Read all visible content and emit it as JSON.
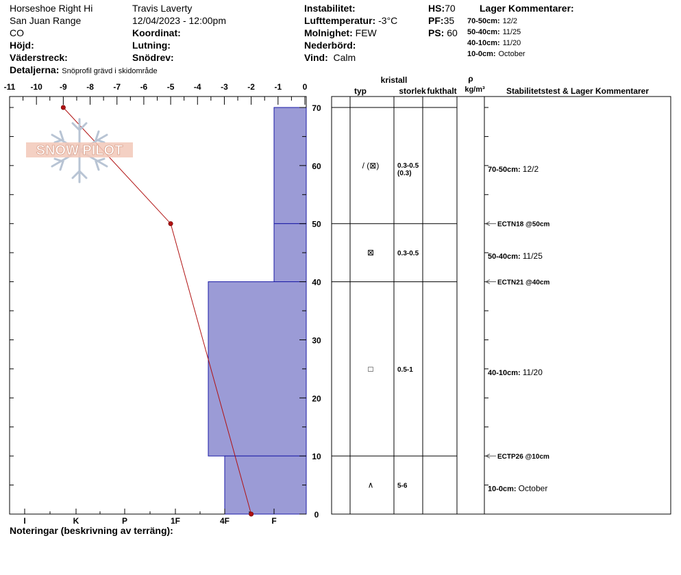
{
  "header": {
    "location": "Horseshoe Right Hi",
    "range": "San Juan Range",
    "state": "CO",
    "hojd_label": "Höjd:",
    "vaderstreck_label": "Väderstreck:",
    "detaljer_label": "Detaljerna:",
    "detaljer_value": "Snöprofil grävd i skidområde",
    "observer": "Travis Laverty",
    "datetime": "12/04/2023 - 12:00pm",
    "koordinat_label": "Koordinat:",
    "lutning_label": "Lutning:",
    "snodrev_label": "Snödrev:",
    "instabilitet_label": "Instabilitet:",
    "lufttemp_label": "Lufttemperatur:",
    "lufttemp_value": "-3°C",
    "molnighet_label": "Molnighet:",
    "molnighet_value": "FEW",
    "nederbord_label": "Nederbörd:",
    "vind_label": "Vind:",
    "vind_value": "Calm",
    "hs_label": "HS:",
    "hs_value": "70",
    "pf_label": "PF:",
    "pf_value": "35",
    "ps_label": "PS:",
    "ps_value": "60",
    "lager_title": "Lager Kommentarer:",
    "lager": [
      {
        "range": "70-50cm:",
        "date": "12/2"
      },
      {
        "range": "50-40cm:",
        "date": "11/25"
      },
      {
        "range": "40-10cm:",
        "date": "11/20"
      },
      {
        "range": "10-0cm:",
        "date": "October"
      }
    ]
  },
  "watermark": "SNOW PILOT",
  "footer": {
    "notes_label": "Noteringar (beskrivning av terräng):"
  },
  "table_headers": {
    "kristall": "kristall",
    "typ": "typ",
    "storlek": "storlek",
    "fukthalt": "fukthalt",
    "rho": "ρ",
    "density_unit": "kg/m³",
    "stability": "Stabilitetstest & Lager Kommentarer"
  },
  "chart_data": {
    "type": "snow-profile",
    "temp_axis": {
      "ticks": [
        "-11",
        "-10",
        "-9",
        "-8",
        "-7",
        "-6",
        "-5",
        "-4",
        "-3",
        "-2",
        "-1",
        "0"
      ],
      "range": [
        -11,
        0
      ]
    },
    "height_axis": {
      "ticks": [
        "0",
        "10",
        "20",
        "30",
        "40",
        "50",
        "60",
        "70"
      ],
      "range": [
        0,
        70
      ]
    },
    "hardness_axis": {
      "labels": [
        "I",
        "K",
        "P",
        "1F",
        "4F",
        "F"
      ]
    },
    "temperature_profile": [
      {
        "height": 70,
        "temp": -9
      },
      {
        "height": 50,
        "temp": -5
      },
      {
        "height": 0,
        "temp": -2
      }
    ],
    "hardness_layers": [
      {
        "top": 70,
        "bottom": 50,
        "hardness": "F"
      },
      {
        "top": 50,
        "bottom": 40,
        "hardness": "F"
      },
      {
        "top": 40,
        "bottom": 10,
        "hardness": "1F-"
      },
      {
        "top": 10,
        "bottom": 0,
        "hardness": "4F"
      }
    ],
    "layers": [
      {
        "top": 70,
        "bottom": 50,
        "crystal": "/ (⊠)",
        "size": "0.3-0.5",
        "size2": "(0.3)",
        "comment_range": "70-50cm:",
        "comment": "12/2"
      },
      {
        "top": 50,
        "bottom": 40,
        "crystal": "⊠",
        "size": "0.3-0.5",
        "size2": "",
        "comment_range": "50-40cm:",
        "comment": "11/25"
      },
      {
        "top": 40,
        "bottom": 10,
        "crystal": "□",
        "size": "0.5-1",
        "size2": "",
        "comment_range": "40-10cm:",
        "comment": "11/20"
      },
      {
        "top": 10,
        "bottom": 0,
        "crystal": "∧",
        "size": "5-6",
        "size2": "",
        "comment_range": "10-0cm:",
        "comment": "October"
      }
    ],
    "stability_tests": [
      {
        "height": 50,
        "label": "ECTN18 @50cm"
      },
      {
        "height": 40,
        "label": "ECTN21 @40cm"
      },
      {
        "height": 10,
        "label": "ECTP26 @10cm"
      }
    ],
    "colors": {
      "hardness_fill": "#9b9bd6",
      "hardness_line": "#1a1aa6",
      "temp_line": "#b01010",
      "temp_point": "#b01010"
    }
  }
}
